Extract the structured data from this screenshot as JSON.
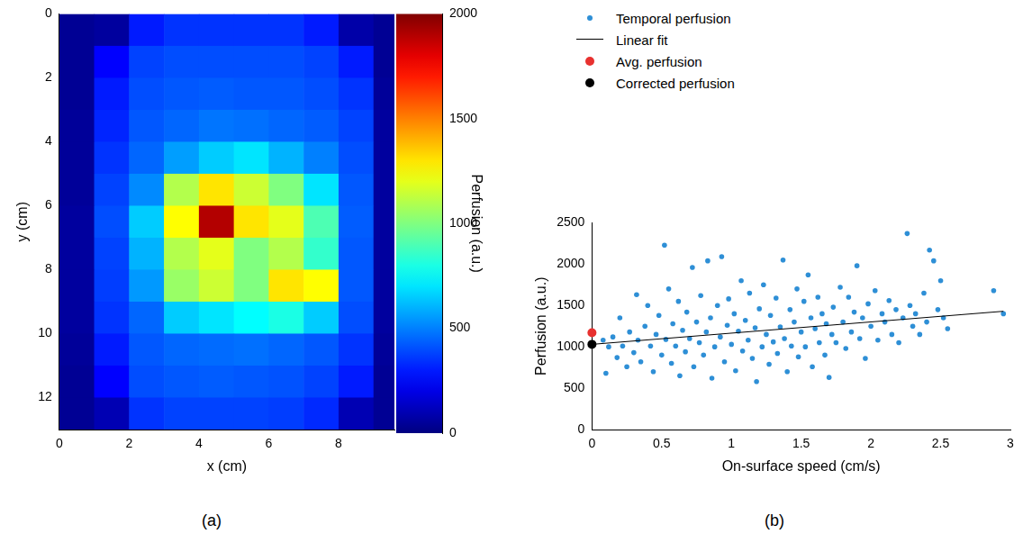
{
  "chart_data": [
    {
      "type": "heatmap",
      "panel": "(a)",
      "xlabel": "x (cm)",
      "ylabel": "y (cm)",
      "x": [
        0.5,
        1.5,
        2.5,
        3.5,
        4.5,
        5.5,
        6.5,
        7.5,
        8.5,
        9.5
      ],
      "y": [
        0.5,
        1.5,
        2.5,
        3.5,
        4.5,
        5.5,
        6.5,
        7.5,
        8.5,
        9.5,
        10.5,
        11.5,
        12.5
      ],
      "z": [
        [
          40,
          60,
          300,
          350,
          350,
          350,
          350,
          300,
          80,
          40
        ],
        [
          40,
          250,
          380,
          400,
          400,
          400,
          400,
          380,
          300,
          40
        ],
        [
          40,
          300,
          400,
          420,
          430,
          420,
          420,
          400,
          350,
          50
        ],
        [
          50,
          320,
          420,
          450,
          480,
          470,
          450,
          430,
          380,
          60
        ],
        [
          50,
          350,
          450,
          560,
          650,
          700,
          600,
          500,
          400,
          60
        ],
        [
          50,
          380,
          520,
          1100,
          1300,
          1150,
          1000,
          700,
          420,
          60
        ],
        [
          60,
          400,
          650,
          1250,
          1900,
          1300,
          1200,
          900,
          430,
          60
        ],
        [
          60,
          380,
          600,
          1100,
          1200,
          1000,
          1100,
          850,
          420,
          60
        ],
        [
          60,
          370,
          550,
          1050,
          1150,
          1000,
          1300,
          1250,
          420,
          60
        ],
        [
          60,
          350,
          450,
          650,
          700,
          750,
          800,
          650,
          400,
          60
        ],
        [
          50,
          300,
          420,
          450,
          460,
          470,
          450,
          420,
          350,
          50
        ],
        [
          40,
          250,
          400,
          420,
          430,
          420,
          410,
          380,
          300,
          40
        ],
        [
          40,
          100,
          350,
          380,
          380,
          380,
          370,
          330,
          100,
          40
        ]
      ],
      "xlim": [
        0,
        9.6
      ],
      "xticks": [
        0,
        2,
        4,
        6,
        8
      ],
      "ylim": [
        0,
        13
      ],
      "yticks": [
        0,
        2,
        4,
        6,
        8,
        10,
        12
      ],
      "colorbar": {
        "label": "Perfusion (a.u.)",
        "range": [
          0,
          2000
        ],
        "ticks": [
          0,
          500,
          1000,
          1500,
          2000
        ]
      },
      "grid": false
    },
    {
      "type": "scatter",
      "panel": "(b)",
      "xlabel": "On-surface speed (cm/s)",
      "ylabel": "Perfusion (a.u.)",
      "xlim": [
        0,
        3
      ],
      "xticks": [
        0,
        0.5,
        1,
        1.5,
        2,
        2.5,
        3
      ],
      "ylim": [
        0,
        2500
      ],
      "yticks": [
        0,
        500,
        1000,
        1500,
        2000,
        2500
      ],
      "grid": false,
      "legend": "top",
      "series": [
        {
          "name": "Temporal perfusion",
          "type": "scatter",
          "marker": "circle",
          "color": "#2e8fd6",
          "x": [
            0.08,
            0.1,
            0.12,
            0.15,
            0.18,
            0.2,
            0.22,
            0.25,
            0.27,
            0.3,
            0.32,
            0.33,
            0.35,
            0.38,
            0.4,
            0.42,
            0.44,
            0.46,
            0.48,
            0.5,
            0.52,
            0.53,
            0.55,
            0.57,
            0.58,
            0.6,
            0.62,
            0.63,
            0.65,
            0.67,
            0.68,
            0.7,
            0.72,
            0.73,
            0.75,
            0.77,
            0.78,
            0.8,
            0.82,
            0.83,
            0.85,
            0.86,
            0.88,
            0.9,
            0.92,
            0.93,
            0.95,
            0.97,
            0.98,
            1.0,
            1.02,
            1.03,
            1.05,
            1.07,
            1.08,
            1.1,
            1.12,
            1.13,
            1.15,
            1.17,
            1.18,
            1.2,
            1.22,
            1.23,
            1.25,
            1.27,
            1.28,
            1.3,
            1.32,
            1.33,
            1.35,
            1.37,
            1.38,
            1.4,
            1.42,
            1.43,
            1.45,
            1.47,
            1.48,
            1.5,
            1.52,
            1.53,
            1.55,
            1.57,
            1.58,
            1.6,
            1.62,
            1.63,
            1.65,
            1.67,
            1.68,
            1.7,
            1.72,
            1.73,
            1.75,
            1.78,
            1.8,
            1.82,
            1.84,
            1.86,
            1.88,
            1.9,
            1.92,
            1.94,
            1.96,
            1.98,
            2.0,
            2.03,
            2.05,
            2.08,
            2.1,
            2.13,
            2.15,
            2.18,
            2.2,
            2.23,
            2.26,
            2.28,
            2.3,
            2.32,
            2.35,
            2.38,
            2.4,
            2.42,
            2.45,
            2.48,
            2.5,
            2.52,
            2.55,
            2.88,
            2.95
          ],
          "values": [
            1080,
            680,
            1000,
            1120,
            870,
            1350,
            1010,
            760,
            1180,
            930,
            1630,
            1080,
            820,
            1250,
            1500,
            1010,
            700,
            1150,
            1380,
            900,
            2230,
            1090,
            1700,
            800,
            1280,
            1010,
            1550,
            650,
            1200,
            940,
            1420,
            1100,
            1960,
            760,
            1300,
            1050,
            1620,
            900,
            1180,
            2040,
            1350,
            620,
            1000,
            1500,
            1120,
            2090,
            820,
            1260,
            1580,
            1030,
            1400,
            710,
            1190,
            1800,
            950,
            1320,
            1080,
            1650,
            860,
            1230,
            580,
            1460,
            1000,
            1750,
            1150,
            790,
            1380,
            1060,
            1590,
            920,
            1240,
            2050,
            1100,
            700,
            1450,
            1010,
            1300,
            1700,
            880,
            1180,
            1550,
            1000,
            1870,
            1350,
            760,
            1220,
            1600,
            1050,
            1400,
            900,
            1280,
            630,
            1150,
            1480,
            1050,
            1720,
            1300,
            980,
            1600,
            1180,
            1420,
            1980,
            1100,
            1350,
            860,
            1520,
            1250,
            1680,
            1080,
            1400,
            1300,
            1560,
            1150,
            1450,
            1050,
            1350,
            2370,
            1500,
            1250,
            1400,
            1150,
            1650,
            1300,
            2170,
            2040,
            1450,
            1800,
            1350,
            1220,
            1680,
            1400
          ]
        },
        {
          "name": "Linear fit",
          "type": "line",
          "line_style": "solid",
          "color": "#000000",
          "x": [
            0,
            2.95
          ],
          "values": [
            1030,
            1430
          ]
        },
        {
          "name": "Avg. perfusion",
          "type": "scatter",
          "marker": "circle",
          "color": "#e8312f",
          "x": [
            0
          ],
          "values": [
            1170
          ]
        },
        {
          "name": "Corrected perfusion",
          "type": "scatter",
          "marker": "circle",
          "color": "#000000",
          "x": [
            0
          ],
          "values": [
            1030
          ]
        }
      ]
    }
  ]
}
